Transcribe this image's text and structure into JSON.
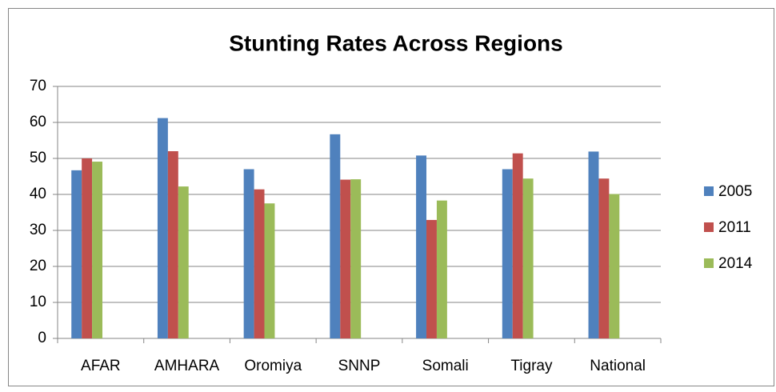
{
  "chart_data": {
    "type": "bar",
    "title": "Stunting Rates Across Regions",
    "categories": [
      "AFAR",
      "AMHARA",
      "Oromiya",
      "SNNP",
      "Somali",
      "Tigray",
      "National"
    ],
    "series": [
      {
        "name": "2005",
        "color": "#4f81bd",
        "values": [
          46.7,
          61.2,
          47,
          56.7,
          50.8,
          47,
          51.9
        ]
      },
      {
        "name": "2011",
        "color": "#c0504d",
        "values": [
          50,
          52,
          41.4,
          44.1,
          32.9,
          51.4,
          44.4
        ]
      },
      {
        "name": "2014",
        "color": "#9bbb59",
        "values": [
          49.1,
          42.2,
          37.5,
          44.2,
          38.3,
          44.4,
          40.1
        ]
      }
    ],
    "ylim": [
      0,
      70
    ],
    "yticks": [
      0,
      10,
      20,
      30,
      40,
      50,
      60,
      70
    ],
    "grid": true,
    "legend": "right"
  }
}
